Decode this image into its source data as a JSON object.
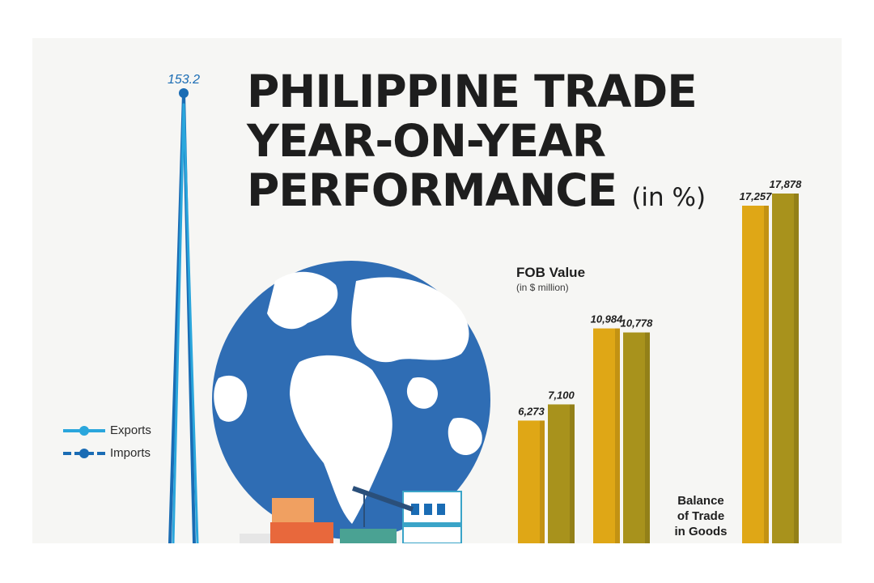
{
  "title": {
    "lines": [
      "PHILIPPINE TRADE",
      "YEAR-ON-YEAR",
      "PERFORMANCE"
    ],
    "unit": "(in %)"
  },
  "legend": {
    "items": [
      {
        "label": "Exports",
        "color": "#2aa6dc"
      },
      {
        "label": "Imports",
        "color": "#1a6cb4"
      }
    ]
  },
  "fob": {
    "title": "FOB Value",
    "subtitle": "(in $ million)"
  },
  "balance_label": [
    "Balance",
    "of Trade",
    "in Goods"
  ],
  "colors": {
    "bar_gold": "#dfa716",
    "bar_olive": "#a8921c",
    "line": "#1a6cb4",
    "globe": "#2f6db4"
  },
  "chart_data": [
    {
      "type": "line",
      "series": [
        {
          "name": "Imports",
          "values": [
            153.2
          ],
          "labels": [
            "153.2"
          ]
        }
      ]
    },
    {
      "type": "bar",
      "title": "FOB Value",
      "subtitle": "(in $ million)",
      "group_labels": [
        "",
        "",
        "Balance of Trade in Goods"
      ],
      "groups": [
        {
          "values": [
            6273,
            7100
          ],
          "labels": [
            "6,273",
            "7,100"
          ]
        },
        {
          "values": [
            10984,
            10778
          ],
          "labels": [
            "10,984",
            "10,778"
          ]
        },
        {
          "values": [
            17257,
            17878
          ],
          "labels": [
            "17,257",
            "17,878"
          ]
        }
      ],
      "ylim": [
        0,
        17878
      ]
    }
  ]
}
